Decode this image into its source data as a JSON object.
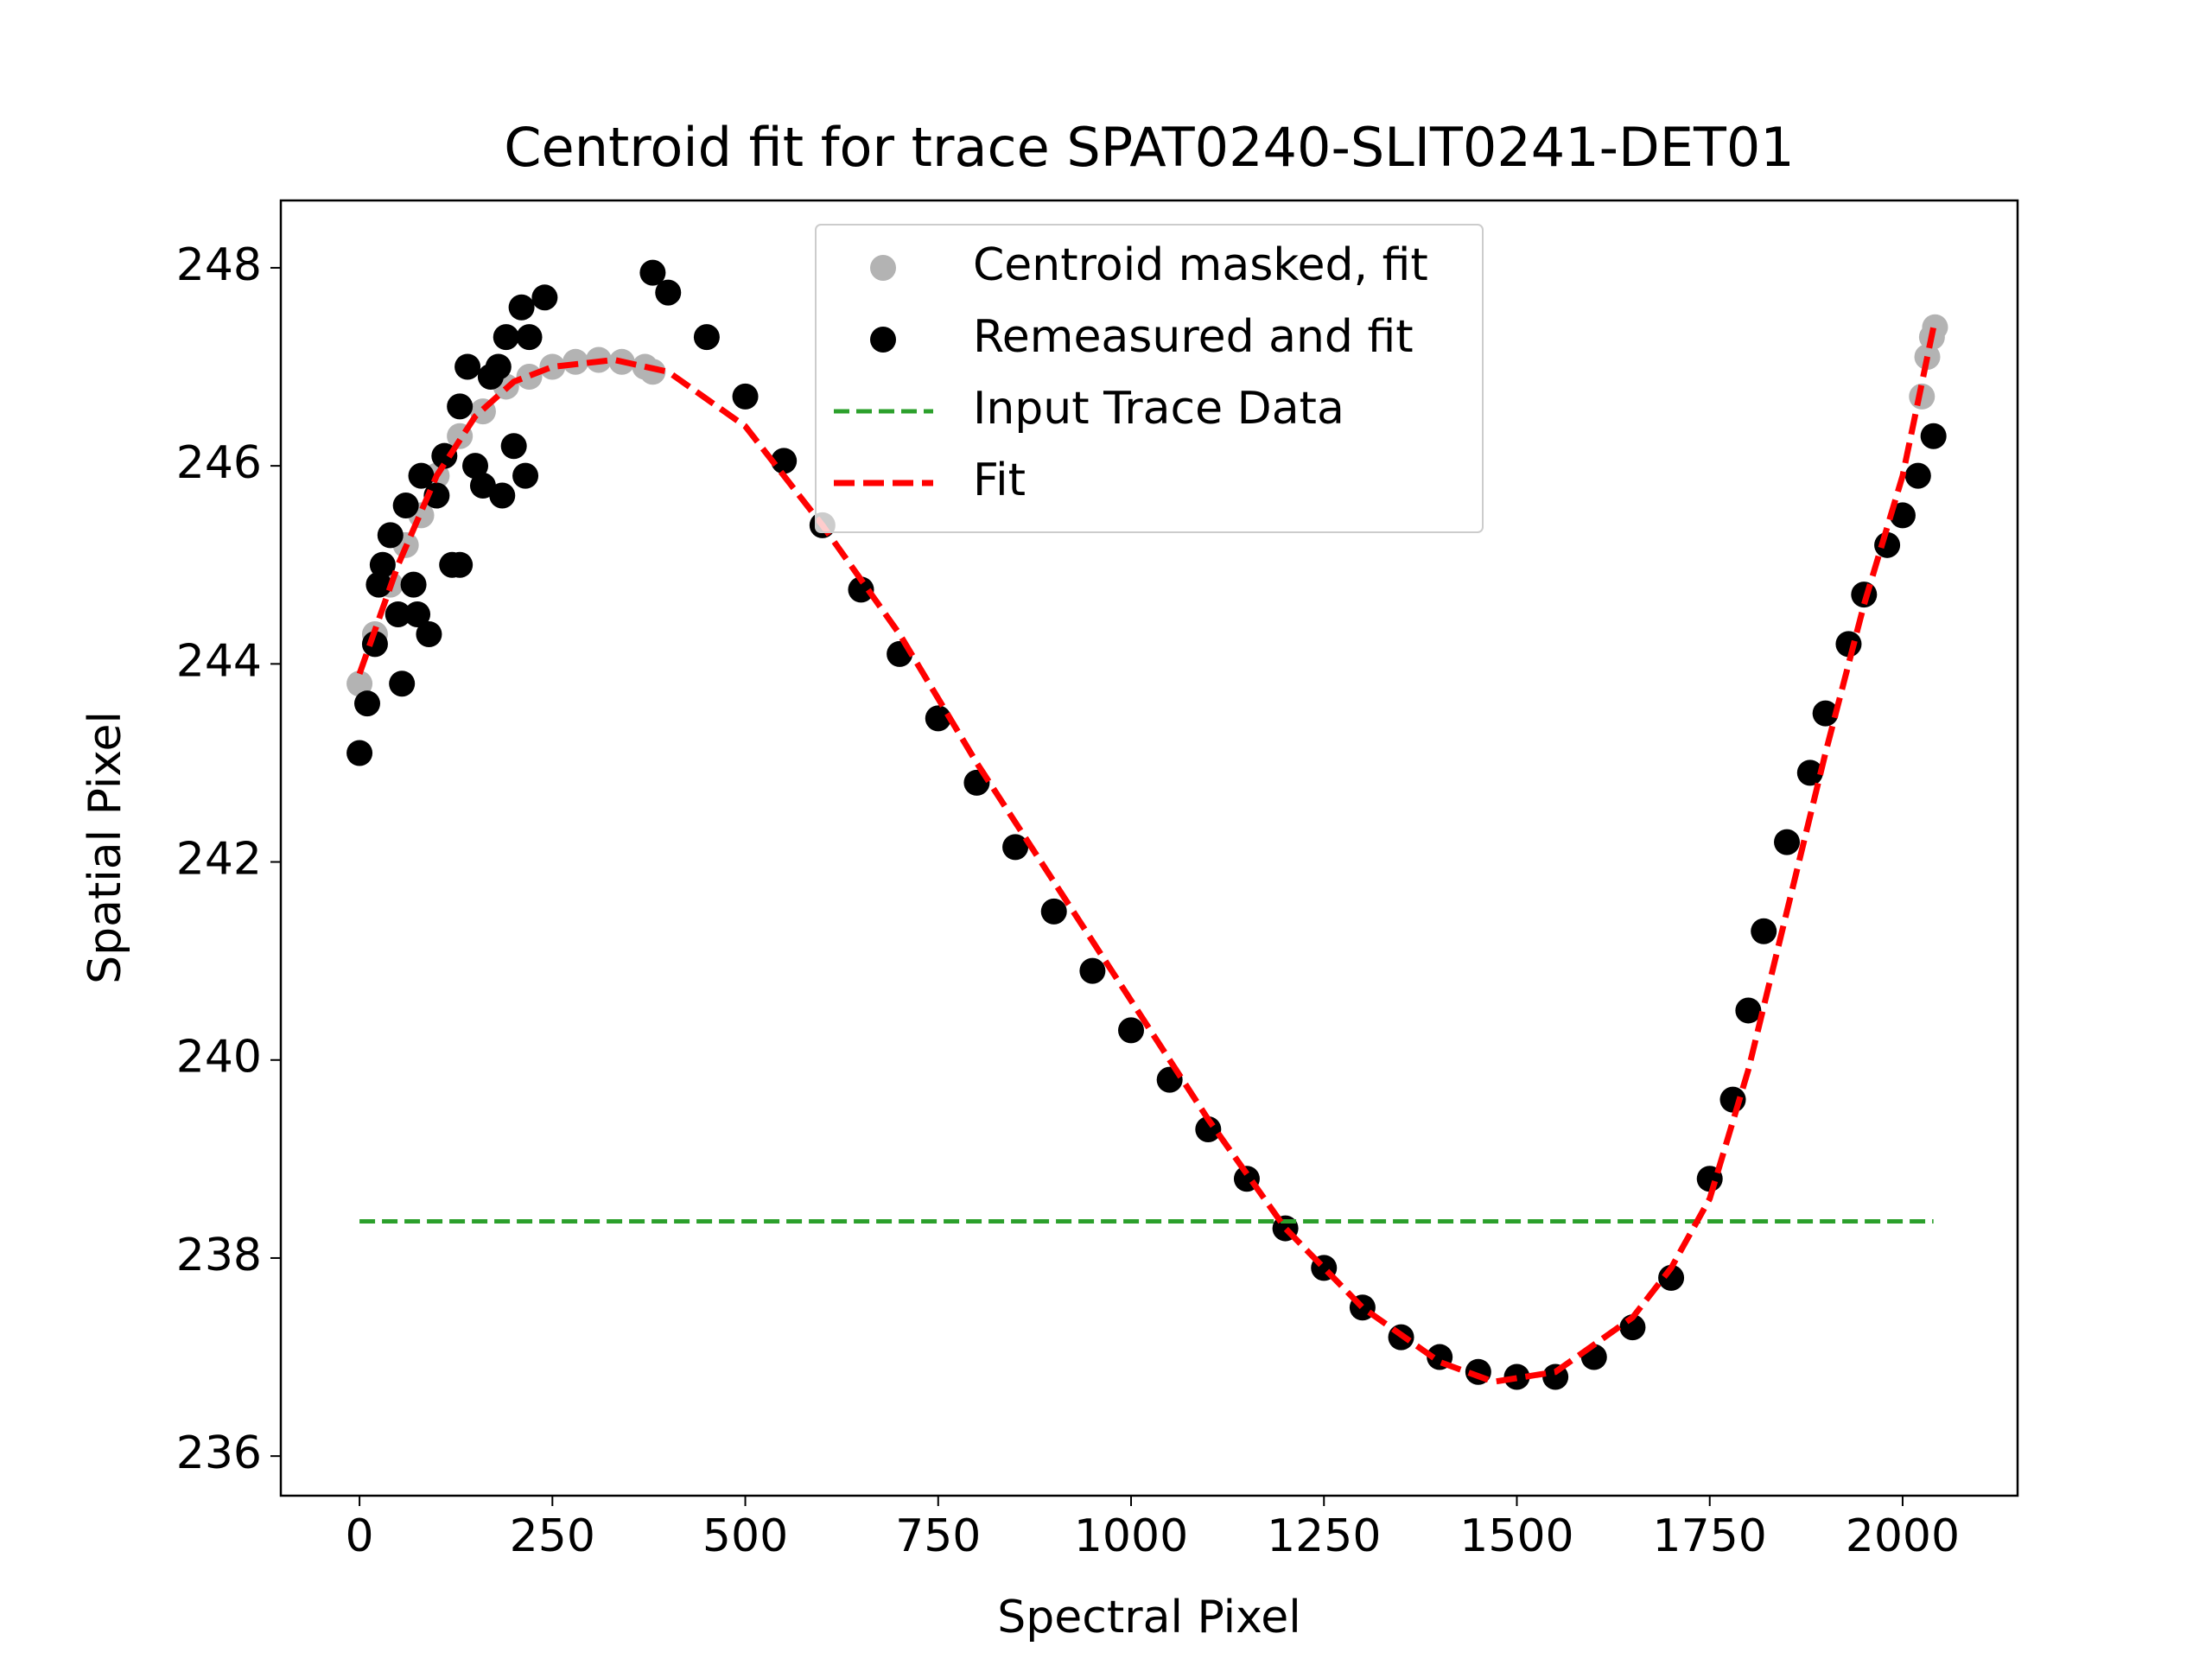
{
  "chart_data": {
    "type": "scatter",
    "title": "Centroid fit for trace SPAT0240-SLIT0241-DET01",
    "x_label": "Spectral Pixel",
    "y_label": "Spatial Pixel",
    "xlim": [
      -102,
      2149
    ],
    "ylim": [
      235.6,
      248.68
    ],
    "xticks": [
      0,
      250,
      500,
      750,
      1000,
      1250,
      1500,
      1750,
      2000
    ],
    "yticks": [
      236,
      238,
      240,
      242,
      244,
      246,
      248
    ],
    "legend": "upper center",
    "series": [
      {
        "name": "Centroid masked, fit",
        "kind": "scatter",
        "color": "#b3b3b3",
        "x": [
          0,
          20,
          40,
          60,
          80,
          100,
          130,
          160,
          190,
          220,
          250,
          280,
          310,
          340,
          370,
          380,
          2025,
          2032,
          2038,
          2042
        ],
        "values": [
          243.8,
          244.3,
          244.8,
          245.2,
          245.5,
          245.9,
          246.3,
          246.55,
          246.8,
          246.9,
          247.0,
          247.05,
          247.07,
          247.05,
          247.0,
          246.95,
          246.7,
          247.1,
          247.3,
          247.4
        ]
      },
      {
        "name": "Remeasured and fit",
        "kind": "scatter",
        "color": "#000000",
        "x": [
          0,
          10,
          20,
          25,
          30,
          40,
          50,
          55,
          60,
          70,
          75,
          80,
          90,
          100,
          110,
          120,
          130,
          130,
          140,
          150,
          160,
          170,
          180,
          185,
          190,
          200,
          210,
          215,
          220,
          240,
          380,
          400,
          450,
          500,
          550,
          600,
          650,
          700,
          750,
          800,
          850,
          900,
          950,
          1000,
          1050,
          1100,
          1150,
          1200,
          1250,
          1300,
          1350,
          1400,
          1450,
          1500,
          1550,
          1600,
          1650,
          1700,
          1750,
          1780,
          1800,
          1820,
          1850,
          1880,
          1900,
          1930,
          1950,
          1980,
          2000,
          2020,
          2040
        ],
        "values": [
          243.1,
          243.6,
          244.2,
          244.8,
          245.0,
          245.3,
          244.5,
          243.8,
          245.6,
          244.8,
          244.5,
          245.9,
          244.3,
          245.7,
          246.1,
          245.0,
          246.6,
          245.0,
          247.0,
          246.0,
          245.8,
          246.9,
          247.0,
          245.7,
          247.3,
          246.2,
          247.6,
          245.9,
          247.3,
          247.7,
          247.95,
          247.75,
          247.3,
          246.7,
          246.05,
          245.4,
          244.75,
          244.1,
          243.45,
          242.8,
          242.15,
          241.5,
          240.9,
          240.3,
          239.8,
          239.3,
          238.8,
          238.3,
          237.9,
          237.5,
          237.2,
          237.0,
          236.85,
          236.8,
          236.8,
          237.0,
          237.3,
          237.8,
          238.8,
          239.6,
          240.5,
          241.3,
          242.2,
          242.9,
          243.5,
          244.2,
          244.7,
          245.2,
          245.5,
          245.9,
          246.3
        ]
      },
      {
        "name": "Input Trace Data",
        "kind": "line",
        "color": "#2ca02c",
        "x": [
          0,
          2040
        ],
        "values": [
          238.37,
          238.37
        ]
      },
      {
        "name": "Fit",
        "kind": "line",
        "color": "#ff0000",
        "x": [
          0,
          50,
          100,
          150,
          200,
          250,
          330,
          400,
          500,
          600,
          700,
          800,
          900,
          1000,
          1100,
          1200,
          1300,
          1400,
          1470,
          1550,
          1650,
          1700,
          1750,
          1800,
          1850,
          1900,
          1950,
          2000,
          2040
        ],
        "values": [
          243.9,
          245.0,
          245.9,
          246.5,
          246.85,
          247.0,
          247.07,
          246.95,
          246.4,
          245.4,
          244.3,
          243.0,
          241.8,
          240.6,
          239.4,
          238.3,
          237.5,
          236.95,
          236.75,
          236.85,
          237.4,
          237.9,
          238.6,
          239.9,
          241.5,
          243.1,
          244.6,
          245.9,
          247.4
        ]
      }
    ]
  }
}
